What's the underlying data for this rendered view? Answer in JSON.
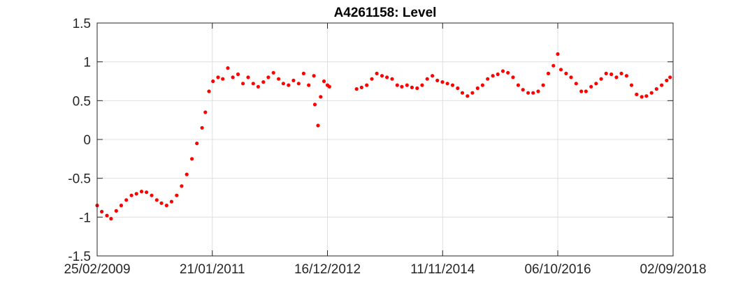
{
  "chart_data": {
    "type": "scatter",
    "title": "A4261158: Level",
    "xlabel": "",
    "ylabel": "",
    "x_tick_labels": [
      "25/02/2009",
      "21/01/2011",
      "16/12/2012",
      "11/11/2014",
      "06/10/2016",
      "02/09/2018"
    ],
    "x_ticks": [
      "2009-02-25",
      "2011-01-21",
      "2012-12-16",
      "2014-11-11",
      "2016-10-06",
      "2018-09-02"
    ],
    "xlim": [
      "2009-02-25",
      "2018-09-02"
    ],
    "y_tick_labels": [
      "1.5",
      "1",
      "0.5",
      "0",
      "-0.5",
      "-1",
      "-1.5"
    ],
    "y_ticks": [
      1.5,
      1,
      0.5,
      0,
      -0.5,
      -1,
      -1.5
    ],
    "ylim": [
      -1.5,
      1.5
    ],
    "grid": true,
    "legend": "none",
    "marker_color": "#ff0000",
    "series": [
      {
        "points": [
          [
            "2009-02-25",
            -0.85
          ],
          [
            "2009-03-25",
            -0.93
          ],
          [
            "2009-04-25",
            -0.98
          ],
          [
            "2009-05-20",
            -1.02
          ],
          [
            "2009-06-20",
            -0.92
          ],
          [
            "2009-07-20",
            -0.85
          ],
          [
            "2009-08-20",
            -0.78
          ],
          [
            "2009-09-20",
            -0.72
          ],
          [
            "2009-10-20",
            -0.7
          ],
          [
            "2009-11-20",
            -0.67
          ],
          [
            "2009-12-20",
            -0.68
          ],
          [
            "2010-01-20",
            -0.72
          ],
          [
            "2010-02-20",
            -0.78
          ],
          [
            "2010-03-20",
            -0.82
          ],
          [
            "2010-04-20",
            -0.85
          ],
          [
            "2010-05-20",
            -0.8
          ],
          [
            "2010-06-20",
            -0.72
          ],
          [
            "2010-07-20",
            -0.6
          ],
          [
            "2010-08-20",
            -0.45
          ],
          [
            "2010-09-20",
            -0.25
          ],
          [
            "2010-10-20",
            -0.05
          ],
          [
            "2010-11-20",
            0.15
          ],
          [
            "2010-12-10",
            0.35
          ],
          [
            "2011-01-01",
            0.62
          ],
          [
            "2011-01-25",
            0.75
          ],
          [
            "2011-02-25",
            0.8
          ],
          [
            "2011-03-25",
            0.78
          ],
          [
            "2011-04-25",
            0.92
          ],
          [
            "2011-05-25",
            0.8
          ],
          [
            "2011-06-25",
            0.84
          ],
          [
            "2011-07-25",
            0.72
          ],
          [
            "2011-08-25",
            0.8
          ],
          [
            "2011-09-25",
            0.72
          ],
          [
            "2011-10-25",
            0.68
          ],
          [
            "2011-11-25",
            0.74
          ],
          [
            "2011-12-25",
            0.8
          ],
          [
            "2012-01-25",
            0.86
          ],
          [
            "2012-02-25",
            0.78
          ],
          [
            "2012-03-25",
            0.72
          ],
          [
            "2012-04-25",
            0.7
          ],
          [
            "2012-05-25",
            0.76
          ],
          [
            "2012-06-25",
            0.72
          ],
          [
            "2012-07-25",
            0.85
          ],
          [
            "2012-08-25",
            0.7
          ],
          [
            "2012-09-25",
            0.82
          ],
          [
            "2012-10-01",
            0.45
          ],
          [
            "2012-10-20",
            0.18
          ],
          [
            "2012-11-05",
            0.55
          ],
          [
            "2012-11-25",
            0.75
          ],
          [
            "2012-12-16",
            0.7
          ],
          [
            "2012-12-28",
            0.68
          ],
          [
            "2013-06-10",
            0.65
          ],
          [
            "2013-07-10",
            0.67
          ],
          [
            "2013-08-10",
            0.7
          ],
          [
            "2013-09-10",
            0.78
          ],
          [
            "2013-10-10",
            0.85
          ],
          [
            "2013-11-10",
            0.82
          ],
          [
            "2013-12-10",
            0.8
          ],
          [
            "2014-01-10",
            0.78
          ],
          [
            "2014-02-10",
            0.7
          ],
          [
            "2014-03-10",
            0.68
          ],
          [
            "2014-04-10",
            0.7
          ],
          [
            "2014-05-10",
            0.67
          ],
          [
            "2014-06-10",
            0.66
          ],
          [
            "2014-07-10",
            0.7
          ],
          [
            "2014-08-10",
            0.78
          ],
          [
            "2014-09-10",
            0.82
          ],
          [
            "2014-10-10",
            0.76
          ],
          [
            "2014-11-10",
            0.74
          ],
          [
            "2014-12-10",
            0.72
          ],
          [
            "2015-01-10",
            0.7
          ],
          [
            "2015-02-10",
            0.66
          ],
          [
            "2015-03-10",
            0.6
          ],
          [
            "2015-04-10",
            0.56
          ],
          [
            "2015-05-10",
            0.6
          ],
          [
            "2015-06-10",
            0.66
          ],
          [
            "2015-07-10",
            0.7
          ],
          [
            "2015-08-10",
            0.78
          ],
          [
            "2015-09-10",
            0.82
          ],
          [
            "2015-10-10",
            0.84
          ],
          [
            "2015-11-10",
            0.88
          ],
          [
            "2015-12-10",
            0.86
          ],
          [
            "2016-01-10",
            0.8
          ],
          [
            "2016-02-10",
            0.7
          ],
          [
            "2016-03-10",
            0.64
          ],
          [
            "2016-04-10",
            0.6
          ],
          [
            "2016-05-10",
            0.6
          ],
          [
            "2016-06-10",
            0.62
          ],
          [
            "2016-07-10",
            0.7
          ],
          [
            "2016-08-10",
            0.85
          ],
          [
            "2016-09-10",
            0.95
          ],
          [
            "2016-10-06",
            1.1
          ],
          [
            "2016-10-25",
            0.9
          ],
          [
            "2016-11-25",
            0.85
          ],
          [
            "2016-12-25",
            0.8
          ],
          [
            "2017-01-25",
            0.72
          ],
          [
            "2017-02-25",
            0.62
          ],
          [
            "2017-03-25",
            0.62
          ],
          [
            "2017-04-25",
            0.68
          ],
          [
            "2017-05-25",
            0.72
          ],
          [
            "2017-06-25",
            0.78
          ],
          [
            "2017-07-25",
            0.85
          ],
          [
            "2017-08-25",
            0.84
          ],
          [
            "2017-09-25",
            0.8
          ],
          [
            "2017-10-25",
            0.85
          ],
          [
            "2017-11-25",
            0.82
          ],
          [
            "2017-12-25",
            0.7
          ],
          [
            "2018-01-25",
            0.58
          ],
          [
            "2018-02-25",
            0.55
          ],
          [
            "2018-03-25",
            0.56
          ],
          [
            "2018-04-25",
            0.6
          ],
          [
            "2018-05-25",
            0.65
          ],
          [
            "2018-06-25",
            0.7
          ],
          [
            "2018-07-25",
            0.76
          ],
          [
            "2018-08-15",
            0.8
          ]
        ]
      }
    ]
  }
}
